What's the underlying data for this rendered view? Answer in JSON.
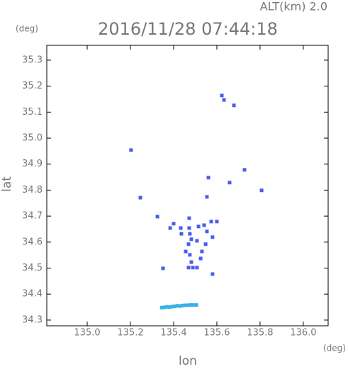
{
  "chart_data": {
    "type": "scatter",
    "title": "2016/11/28 07:44:18",
    "subtitle": "ALT(km) 2.0",
    "x_label": "lon",
    "y_label": "lat",
    "x_unit": "(deg)",
    "y_unit": "(deg)",
    "xlim": [
      134.813,
      136.115
    ],
    "ylim": [
      34.278,
      35.357
    ],
    "xticks": [
      {
        "value": 135,
        "label": "135.0"
      },
      135.2,
      135.4,
      135.6,
      135.8,
      {
        "value": 136,
        "label": "136.0"
      }
    ],
    "yticks": [
      34.3,
      34.4,
      34.5,
      34.6,
      34.7,
      34.8,
      34.9,
      {
        "value": 35,
        "label": "35.0"
      },
      35.1,
      35.2,
      35.3
    ],
    "series": [
      {
        "color": "#4a5cf0",
        "x": [
          135.623,
          135.633,
          135.679,
          135.203,
          135.728,
          135.246,
          135.554,
          135.561,
          135.807,
          135.659,
          135.325,
          135.472,
          135.384,
          135.4,
          135.433,
          135.436,
          135.472,
          135.475,
          135.482,
          135.515,
          135.541,
          135.554,
          135.574,
          135.6,
          135.58,
          135.508,
          135.469,
          135.456,
          135.475,
          135.531,
          135.548,
          135.525,
          135.482,
          135.469,
          135.489,
          135.508,
          135.351,
          135.58
        ],
        "y": [
          35.164,
          35.147,
          35.126,
          34.954,
          34.878,
          34.771,
          34.774,
          34.848,
          34.799,
          34.829,
          34.698,
          34.692,
          34.654,
          34.671,
          34.654,
          34.632,
          34.654,
          34.632,
          34.611,
          34.66,
          34.665,
          34.641,
          34.679,
          34.679,
          34.619,
          34.605,
          34.592,
          34.564,
          34.551,
          34.564,
          34.592,
          34.537,
          34.523,
          34.502,
          34.502,
          34.502,
          34.499,
          34.477
        ]
      },
      {
        "color": "#3ab0e8",
        "x": [
          135.345,
          135.357,
          135.369,
          135.381,
          135.393,
          135.405,
          135.417,
          135.429,
          135.441,
          135.453,
          135.465,
          135.477,
          135.489,
          135.505
        ],
        "y": [
          34.348,
          34.349,
          34.351,
          34.35,
          34.352,
          34.353,
          34.355,
          34.354,
          34.356,
          34.357,
          34.357,
          34.358,
          34.358,
          34.358
        ]
      }
    ]
  }
}
